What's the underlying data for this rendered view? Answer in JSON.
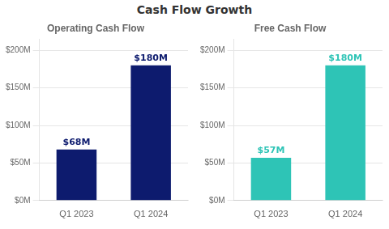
{
  "title": "Cash Flow Growth",
  "chart_data": [
    {
      "type": "bar",
      "title": "Operating Cash Flow",
      "categories": [
        "Q1 2023",
        "Q1 2024"
      ],
      "values": [
        68,
        180
      ],
      "value_labels": [
        "$68M",
        "$180M"
      ],
      "data_labels": true,
      "color": "#0D1B6E",
      "ylim": [
        0,
        215
      ],
      "yticks": [
        {
          "value": 0,
          "label": "$0M"
        },
        {
          "value": 50,
          "label": "$50M"
        },
        {
          "value": 100,
          "label": "$100M"
        },
        {
          "value": 150,
          "label": "$150M"
        },
        {
          "value": 200,
          "label": "$200M"
        }
      ],
      "grid": true
    },
    {
      "type": "bar",
      "title": "Free Cash Flow",
      "categories": [
        "Q1 2023",
        "Q1 2024"
      ],
      "values": [
        57,
        180
      ],
      "value_labels": [
        "$57M",
        "$180M"
      ],
      "data_labels": true,
      "color": "#2EC4B6",
      "ylim": [
        0,
        215
      ],
      "yticks": [
        {
          "value": 0,
          "label": "$0M"
        },
        {
          "value": 50,
          "label": "$50M"
        },
        {
          "value": 100,
          "label": "$100M"
        },
        {
          "value": 150,
          "label": "$150M"
        },
        {
          "value": 200,
          "label": "$200M"
        }
      ],
      "grid": true
    }
  ]
}
